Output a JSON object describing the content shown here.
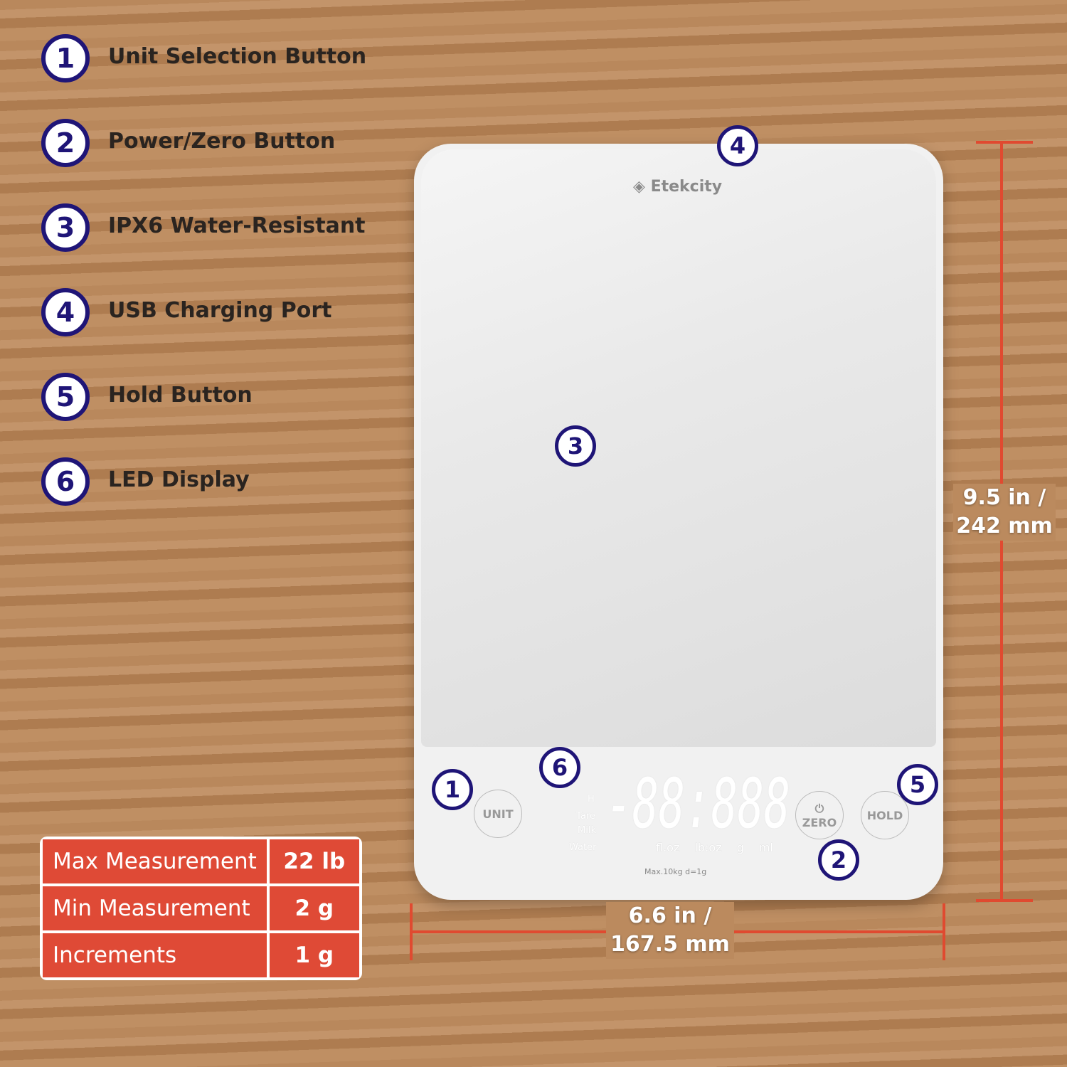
{
  "features": [
    {
      "num": "1",
      "label": "Unit Selection Button"
    },
    {
      "num": "2",
      "label": "Power/Zero Button"
    },
    {
      "num": "3",
      "label": "IPX6 Water-Resistant"
    },
    {
      "num": "4",
      "label": "USB Charging Port"
    },
    {
      "num": "5",
      "label": "Hold Button"
    },
    {
      "num": "6",
      "label": "LED Display"
    }
  ],
  "scale": {
    "brand": "Etekcity",
    "unit_button": "UNIT",
    "zero_button": "ZERO",
    "hold_button": "HOLD",
    "display": "-88:888",
    "indicator_h": "H",
    "indicators": [
      "Tare",
      "Milk",
      "Water"
    ],
    "units": "fl.oz lb:oz g ml",
    "spec": "Max.10kg  d=1g"
  },
  "dimensions": {
    "height": "9.5 in /",
    "height_mm": "242 mm",
    "width": "6.6 in /",
    "width_mm": "167.5 mm"
  },
  "specs": [
    {
      "label": "Max Measurement",
      "value": "22 lb"
    },
    {
      "label": "Min Measurement",
      "value": "2 g"
    },
    {
      "label": "Increments",
      "value": "1 g"
    }
  ],
  "colors": {
    "accent": "#df4a36",
    "marker": "#1f1577"
  }
}
